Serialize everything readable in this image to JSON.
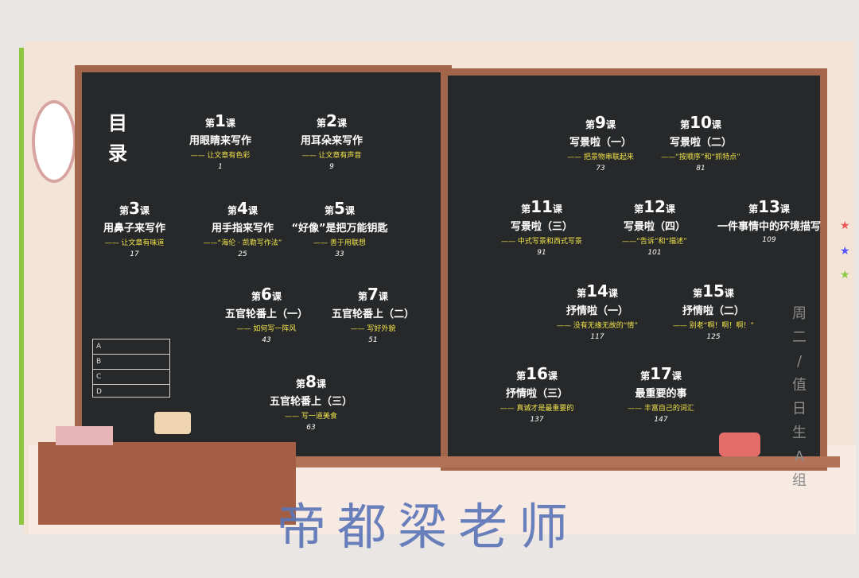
{
  "toc": {
    "title": "目录"
  },
  "lessons_left": [
    {
      "prefix": "第",
      "num": "1",
      "suffix": "课",
      "title": "用眼睛来写作",
      "subtitle": "—— 让文章有色彩",
      "page": "1"
    },
    {
      "prefix": "第",
      "num": "2",
      "suffix": "课",
      "title": "用耳朵来写作",
      "subtitle": "—— 让文章有声音",
      "page": "9"
    },
    {
      "prefix": "第",
      "num": "3",
      "suffix": "课",
      "title": "用鼻子来写作",
      "subtitle": "—— 让文章有味道",
      "page": "17"
    },
    {
      "prefix": "第",
      "num": "4",
      "suffix": "课",
      "title": "用手指来写作",
      "subtitle": "——“海伦 · 凯勒写作法”",
      "page": "25"
    },
    {
      "prefix": "第",
      "num": "5",
      "suffix": "课",
      "title": "“好像”是把万能钥匙",
      "subtitle": "—— 善于用联想",
      "page": "33"
    },
    {
      "prefix": "第",
      "num": "6",
      "suffix": "课",
      "title": "五官轮番上（一）",
      "subtitle": "—— 如何写一阵风",
      "page": "43"
    },
    {
      "prefix": "第",
      "num": "7",
      "suffix": "课",
      "title": "五官轮番上（二）",
      "subtitle": "—— 写好外貌",
      "page": "51"
    },
    {
      "prefix": "第",
      "num": "8",
      "suffix": "课",
      "title": "五官轮番上（三）",
      "subtitle": "—— 写一道美食",
      "page": "63"
    }
  ],
  "lessons_right": [
    {
      "prefix": "第",
      "num": "9",
      "suffix": "课",
      "title": "写景啦（一）",
      "subtitle": "—— 把景物串联起来",
      "page": "73"
    },
    {
      "prefix": "第",
      "num": "10",
      "suffix": "课",
      "title": "写景啦（二）",
      "subtitle": "——“按顺序”和“抓特点”",
      "page": "81"
    },
    {
      "prefix": "第",
      "num": "11",
      "suffix": "课",
      "title": "写景啦（三）",
      "subtitle": "—— 中式写景和西式写景",
      "page": "91"
    },
    {
      "prefix": "第",
      "num": "12",
      "suffix": "课",
      "title": "写景啦（四）",
      "subtitle": "——“告诉”和“描述”",
      "page": "101"
    },
    {
      "prefix": "第",
      "num": "13",
      "suffix": "课",
      "title": "一件事情中的环境描写",
      "subtitle": "",
      "page": "109"
    },
    {
      "prefix": "第",
      "num": "14",
      "suffix": "课",
      "title": "抒情啦（一）",
      "subtitle": "—— 没有无缘无故的“情”",
      "page": "117"
    },
    {
      "prefix": "第",
      "num": "15",
      "suffix": "课",
      "title": "抒情啦（二）",
      "subtitle": "—— 别老“啊！啊！啊！”",
      "page": "125"
    },
    {
      "prefix": "第",
      "num": "16",
      "suffix": "课",
      "title": "抒情啦（三）",
      "subtitle": "—— 真诚才是最重要的",
      "page": "137"
    },
    {
      "prefix": "第",
      "num": "17",
      "suffix": "课",
      "title": "最重要的事",
      "subtitle": "—— 丰富自己的词汇",
      "page": "147"
    }
  ],
  "grade_card": [
    "A",
    "B",
    "C",
    "D"
  ],
  "side_writing": [
    "周",
    "二",
    "/",
    "值",
    "日",
    "生",
    "A",
    "组"
  ],
  "watermark": "帝都梁老师",
  "colors": {
    "board": "#26282a",
    "frame": "#a4664a",
    "subtitle": "#f2e34a",
    "watermark": "#5c76b8"
  }
}
